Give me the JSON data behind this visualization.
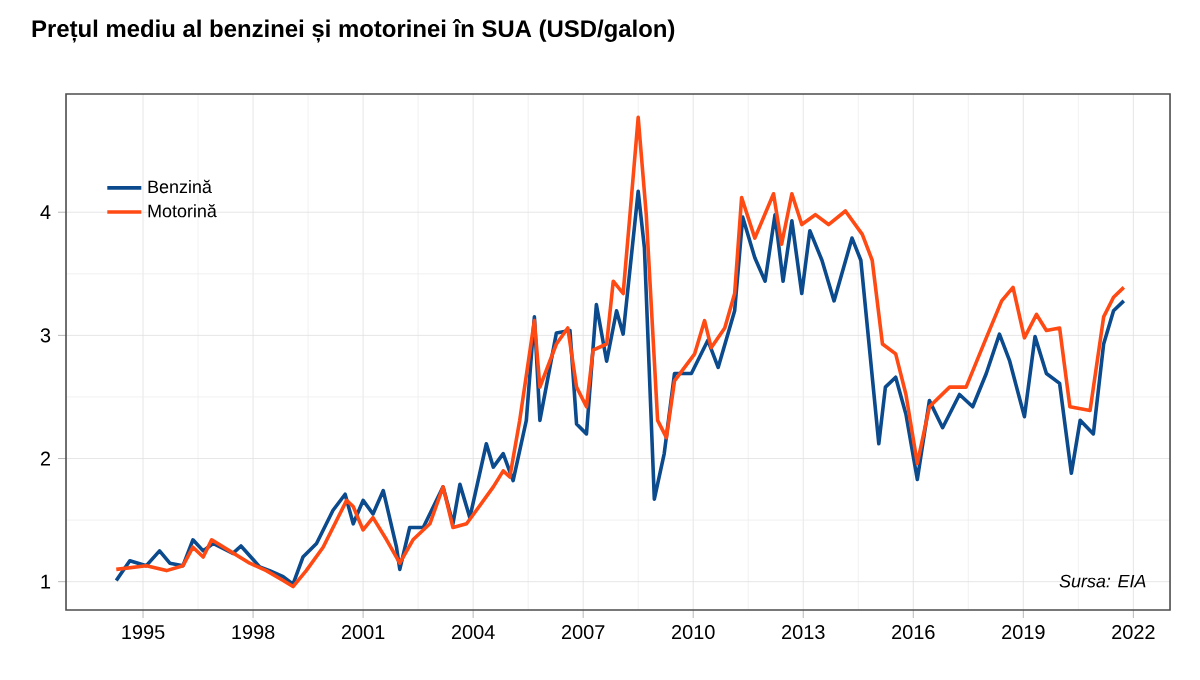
{
  "chart_data": {
    "type": "line",
    "title": "Prețul mediu al benzinei și motorinei în SUA (USD/galon)",
    "xlim": [
      1992.9,
      2023.0
    ],
    "xticks": [
      1995,
      1998,
      2001,
      2004,
      2007,
      2010,
      2013,
      2016,
      2019,
      2022
    ],
    "ylim": [
      0.77,
      4.96
    ],
    "yticks": [
      1,
      2,
      3,
      4
    ],
    "grid": true,
    "legend": "top left",
    "line_style": "solid",
    "marker": "none",
    "annotations": [
      "Sursa: EIA"
    ],
    "series": [
      {
        "name": "Benzină",
        "color": "#0b4a8c",
        "x": [
          1994.27,
          1994.64,
          1995.09,
          1995.45,
          1995.73,
          1996.09,
          1996.36,
          1996.64,
          1996.91,
          1997.45,
          1997.67,
          1998.18,
          1998.45,
          1998.82,
          1999.09,
          1999.36,
          1999.73,
          2000.18,
          2000.51,
          2000.73,
          2001.0,
          2001.27,
          2001.55,
          2001.91,
          2002.0,
          2002.27,
          2002.64,
          2003.18,
          2003.45,
          2003.64,
          2003.91,
          2004.36,
          2004.55,
          2004.82,
          2005.09,
          2005.45,
          2005.67,
          2005.82,
          2006.27,
          2006.64,
          2006.82,
          2007.09,
          2007.36,
          2007.64,
          2007.91,
          2008.09,
          2008.5,
          2008.67,
          2008.94,
          2009.21,
          2009.49,
          2009.95,
          2010.4,
          2010.68,
          2011.13,
          2011.35,
          2011.68,
          2011.96,
          2012.23,
          2012.45,
          2012.69,
          2012.96,
          2013.18,
          2013.51,
          2013.84,
          2014.33,
          2014.57,
          2015.06,
          2015.24,
          2015.52,
          2015.8,
          2016.11,
          2016.44,
          2016.8,
          2017.26,
          2017.62,
          2017.99,
          2018.35,
          2018.63,
          2019.03,
          2019.32,
          2019.63,
          2019.99,
          2020.31,
          2020.55,
          2020.91,
          2021.19,
          2021.46,
          2021.74
        ],
        "values": [
          1.01,
          1.17,
          1.13,
          1.25,
          1.15,
          1.13,
          1.34,
          1.25,
          1.31,
          1.23,
          1.29,
          1.12,
          1.09,
          1.04,
          0.98,
          1.2,
          1.31,
          1.58,
          1.71,
          1.47,
          1.66,
          1.55,
          1.74,
          1.28,
          1.1,
          1.44,
          1.44,
          1.77,
          1.47,
          1.79,
          1.52,
          2.12,
          1.93,
          2.04,
          1.82,
          2.31,
          3.15,
          2.31,
          3.02,
          3.04,
          2.28,
          2.2,
          3.25,
          2.79,
          3.2,
          3.01,
          4.17,
          3.71,
          1.67,
          2.04,
          2.69,
          2.69,
          2.96,
          2.74,
          3.2,
          3.96,
          3.63,
          3.44,
          3.98,
          3.44,
          3.93,
          3.34,
          3.85,
          3.61,
          3.28,
          3.79,
          3.61,
          2.12,
          2.58,
          2.66,
          2.36,
          1.83,
          2.47,
          2.25,
          2.52,
          2.42,
          2.69,
          3.01,
          2.79,
          2.34,
          2.99,
          2.69,
          2.61,
          1.88,
          2.31,
          2.2,
          2.93,
          3.2,
          3.28
        ]
      },
      {
        "name": "Motorină",
        "color": "#ff4a14",
        "x": [
          1994.27,
          1995.09,
          1995.64,
          1996.09,
          1996.36,
          1996.64,
          1996.87,
          1997.36,
          1997.91,
          1998.36,
          1998.82,
          1999.09,
          1999.45,
          1999.91,
          2000.18,
          2000.55,
          2000.73,
          2001.0,
          2001.27,
          2001.64,
          2002.0,
          2002.36,
          2002.82,
          2003.18,
          2003.45,
          2003.82,
          2004.09,
          2004.55,
          2004.82,
          2005.0,
          2005.27,
          2005.67,
          2005.82,
          2006.27,
          2006.58,
          2006.82,
          2007.09,
          2007.27,
          2007.64,
          2007.82,
          2008.09,
          2008.27,
          2008.5,
          2008.72,
          2009.03,
          2009.27,
          2009.49,
          2010.04,
          2010.31,
          2010.49,
          2010.86,
          2011.13,
          2011.32,
          2011.68,
          2012.19,
          2012.41,
          2012.69,
          2012.96,
          2013.33,
          2013.69,
          2014.15,
          2014.61,
          2014.88,
          2015.16,
          2015.52,
          2015.8,
          2016.11,
          2016.44,
          2016.99,
          2017.44,
          2017.99,
          2018.41,
          2018.72,
          2019.03,
          2019.36,
          2019.63,
          2019.99,
          2020.27,
          2020.82,
          2021.19,
          2021.46,
          2021.74
        ],
        "values": [
          1.1,
          1.13,
          1.09,
          1.13,
          1.28,
          1.2,
          1.34,
          1.25,
          1.15,
          1.09,
          1.01,
          0.96,
          1.09,
          1.28,
          1.44,
          1.66,
          1.61,
          1.42,
          1.52,
          1.34,
          1.15,
          1.34,
          1.47,
          1.77,
          1.44,
          1.47,
          1.58,
          1.77,
          1.9,
          1.85,
          2.31,
          3.12,
          2.58,
          2.93,
          3.06,
          2.58,
          2.42,
          2.88,
          2.93,
          3.44,
          3.34,
          3.96,
          4.77,
          3.98,
          2.31,
          2.17,
          2.63,
          2.85,
          3.12,
          2.9,
          3.06,
          3.34,
          4.12,
          3.79,
          4.15,
          3.74,
          4.15,
          3.9,
          3.98,
          3.9,
          4.01,
          3.82,
          3.61,
          2.93,
          2.85,
          2.52,
          1.96,
          2.42,
          2.58,
          2.58,
          2.98,
          3.28,
          3.39,
          2.98,
          3.17,
          3.04,
          3.06,
          2.42,
          2.39,
          3.15,
          3.31,
          3.39
        ]
      }
    ]
  }
}
